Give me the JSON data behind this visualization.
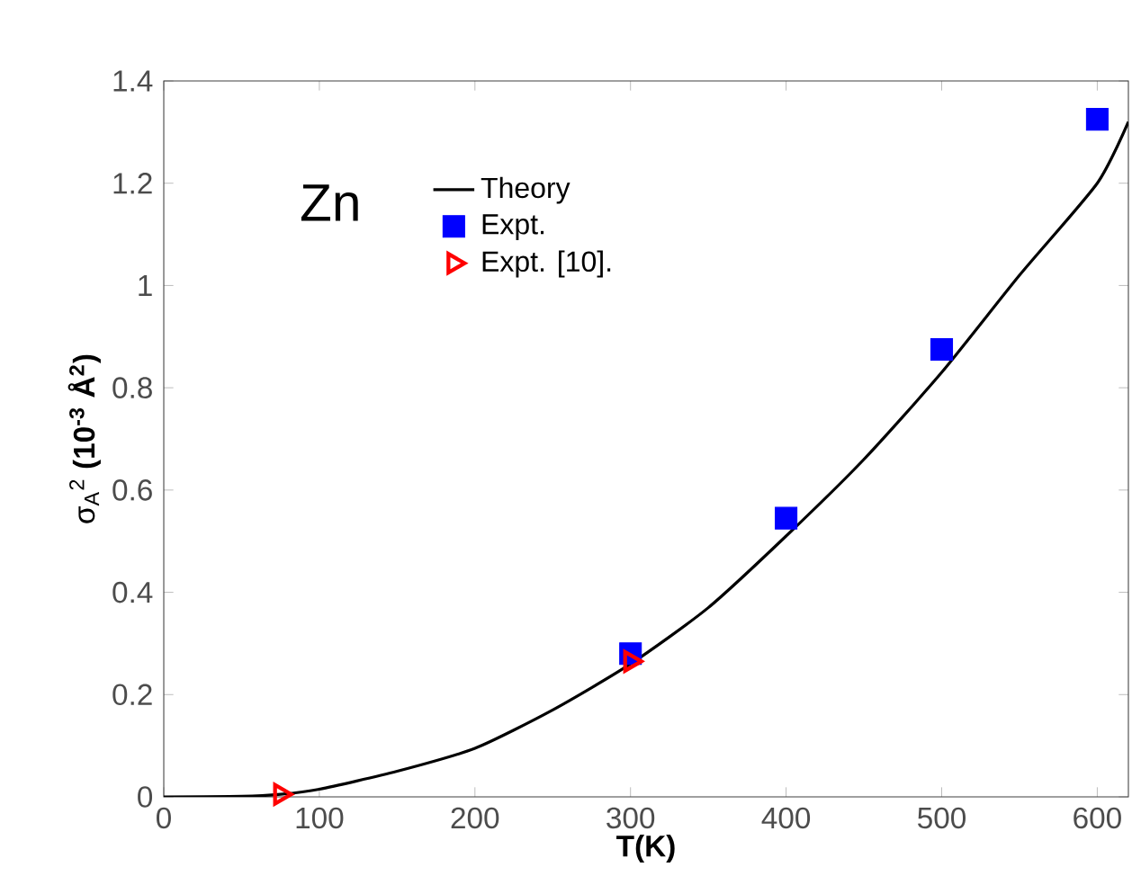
{
  "chart_data": {
    "type": "scatter",
    "xlabel": "T(K)",
    "ylabel": "σ$_{A}$$^{2}$ **(10$^{-3}$ Å$^{2}$)**",
    "annotations": [
      "Zn"
    ],
    "xlim": [
      0,
      620
    ],
    "ylim": [
      0,
      1.4
    ],
    "xticks": [
      0,
      100,
      200,
      300,
      400,
      500,
      600
    ],
    "yticks": [
      0,
      0.2,
      0.4,
      0.6,
      0.8,
      1,
      1.2,
      1.4
    ],
    "legend": "top left",
    "grid": false,
    "series": [
      {
        "name": "Theory",
        "type": "line",
        "color": "#000000",
        "marker": "none",
        "line_style": "solid",
        "x": [
          0,
          50,
          75,
          100,
          150,
          200,
          250,
          300,
          350,
          400,
          450,
          500,
          550,
          600,
          620
        ],
        "values": [
          0,
          0.001,
          0.005,
          0.015,
          0.05,
          0.095,
          0.17,
          0.26,
          0.37,
          0.51,
          0.66,
          0.83,
          1.02,
          1.2,
          1.32
        ]
      },
      {
        "name": "Expt.",
        "color": "#0000ff",
        "marker": "square",
        "x": [
          300,
          400,
          500,
          600
        ],
        "values": [
          0.28,
          0.545,
          0.875,
          1.325
        ]
      },
      {
        "name": "Expt. [10].",
        "color": "#ff0000",
        "marker": "triangle",
        "x": [
          75,
          300
        ],
        "values": [
          0.005,
          0.265
        ]
      }
    ]
  }
}
